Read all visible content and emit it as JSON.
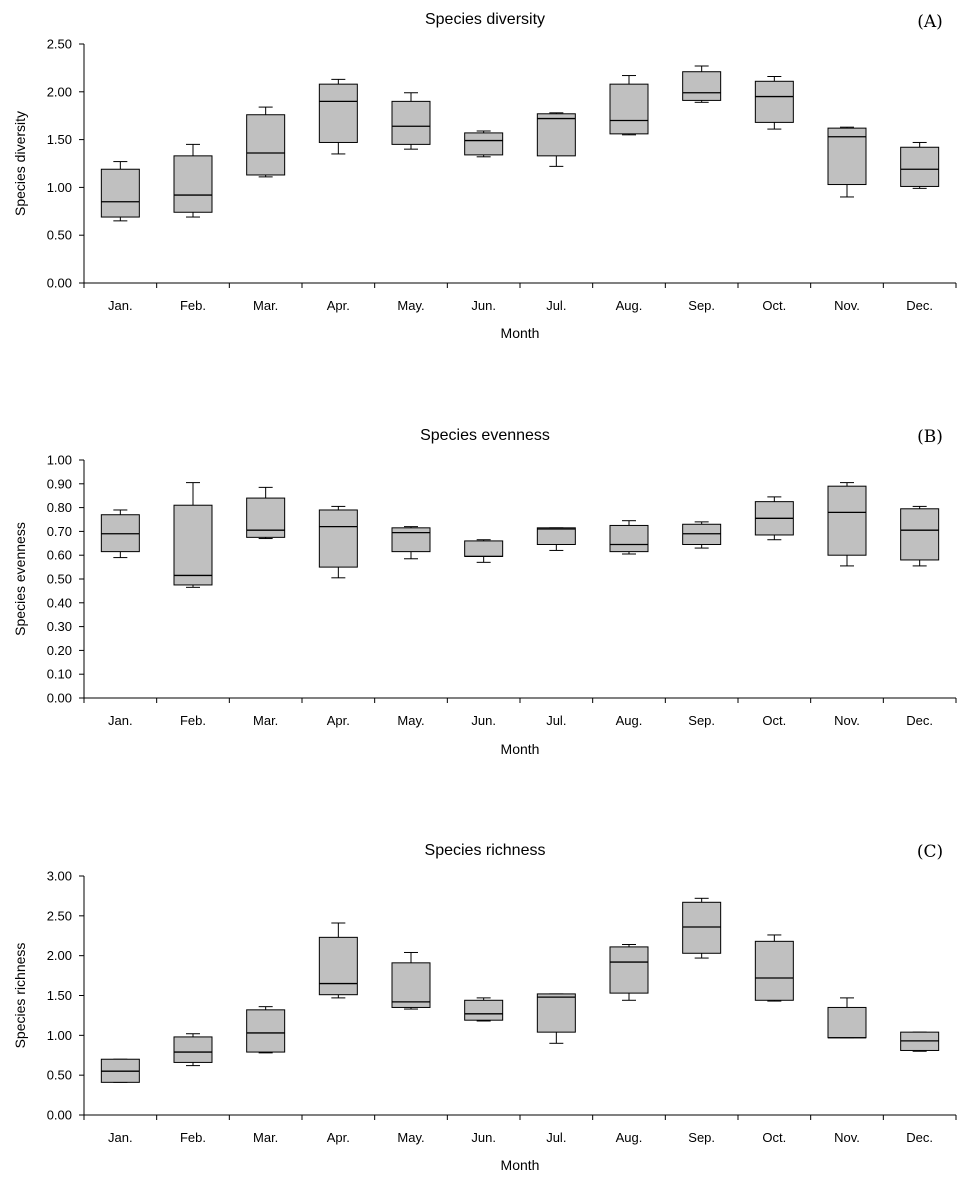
{
  "chart_data": [
    {
      "type": "box",
      "title": "Species diversity",
      "panel_label": "(A)",
      "xlabel": "Month",
      "ylabel": "Species diversity",
      "ylim": [
        0,
        2.5
      ],
      "yticks": [
        "0.00",
        "0.50",
        "1.00",
        "1.50",
        "2.00",
        "2.50"
      ],
      "categories": [
        "Jan.",
        "Feb.",
        "Mar.",
        "Apr.",
        "May.",
        "Jun.",
        "Jul.",
        "Aug.",
        "Sep.",
        "Oct.",
        "Nov.",
        "Dec."
      ],
      "boxes": [
        {
          "min": 0.65,
          "q1": 0.69,
          "median": 0.85,
          "q3": 1.19,
          "max": 1.27
        },
        {
          "min": 0.69,
          "q1": 0.74,
          "median": 0.92,
          "q3": 1.33,
          "max": 1.45
        },
        {
          "min": 1.11,
          "q1": 1.13,
          "median": 1.36,
          "q3": 1.76,
          "max": 1.84
        },
        {
          "min": 1.35,
          "q1": 1.47,
          "median": 1.9,
          "q3": 2.08,
          "max": 2.13
        },
        {
          "min": 1.4,
          "q1": 1.45,
          "median": 1.64,
          "q3": 1.9,
          "max": 1.99
        },
        {
          "min": 1.32,
          "q1": 1.34,
          "median": 1.49,
          "q3": 1.57,
          "max": 1.59
        },
        {
          "min": 1.22,
          "q1": 1.33,
          "median": 1.72,
          "q3": 1.77,
          "max": 1.78
        },
        {
          "min": 1.55,
          "q1": 1.56,
          "median": 1.7,
          "q3": 2.08,
          "max": 2.17
        },
        {
          "min": 1.89,
          "q1": 1.91,
          "median": 1.99,
          "q3": 2.21,
          "max": 2.27
        },
        {
          "min": 1.61,
          "q1": 1.68,
          "median": 1.95,
          "q3": 2.11,
          "max": 2.16
        },
        {
          "min": 0.9,
          "q1": 1.03,
          "median": 1.53,
          "q3": 1.62,
          "max": 1.63
        },
        {
          "min": 0.99,
          "q1": 1.01,
          "median": 1.19,
          "q3": 1.42,
          "max": 1.47
        }
      ]
    },
    {
      "type": "box",
      "title": "Species evenness",
      "panel_label": "(B)",
      "xlabel": "Month",
      "ylabel": "Species evenness",
      "ylim": [
        0,
        1
      ],
      "yticks": [
        "0.00",
        "0.10",
        "0.20",
        "0.30",
        "0.40",
        "0.50",
        "0.60",
        "0.70",
        "0.80",
        "0.90",
        "1.00"
      ],
      "categories": [
        "Jan.",
        "Feb.",
        "Mar.",
        "Apr.",
        "May.",
        "Jun.",
        "Jul.",
        "Aug.",
        "Sep.",
        "Oct.",
        "Nov.",
        "Dec."
      ],
      "boxes": [
        {
          "min": 0.59,
          "q1": 0.615,
          "median": 0.69,
          "q3": 0.77,
          "max": 0.79
        },
        {
          "min": 0.465,
          "q1": 0.475,
          "median": 0.515,
          "q3": 0.81,
          "max": 0.905
        },
        {
          "min": 0.67,
          "q1": 0.675,
          "median": 0.705,
          "q3": 0.84,
          "max": 0.885
        },
        {
          "min": 0.505,
          "q1": 0.55,
          "median": 0.72,
          "q3": 0.79,
          "max": 0.805
        },
        {
          "min": 0.585,
          "q1": 0.615,
          "median": 0.695,
          "q3": 0.715,
          "max": 0.72
        },
        {
          "min": 0.57,
          "q1": 0.595,
          "median": 0.595,
          "q3": 0.66,
          "max": 0.665
        },
        {
          "min": 0.62,
          "q1": 0.645,
          "median": 0.71,
          "q3": 0.715,
          "max": 0.715
        },
        {
          "min": 0.605,
          "q1": 0.615,
          "median": 0.645,
          "q3": 0.725,
          "max": 0.745
        },
        {
          "min": 0.63,
          "q1": 0.645,
          "median": 0.69,
          "q3": 0.73,
          "max": 0.74
        },
        {
          "min": 0.665,
          "q1": 0.685,
          "median": 0.755,
          "q3": 0.825,
          "max": 0.845
        },
        {
          "min": 0.555,
          "q1": 0.6,
          "median": 0.78,
          "q3": 0.89,
          "max": 0.905
        },
        {
          "min": 0.555,
          "q1": 0.58,
          "median": 0.705,
          "q3": 0.795,
          "max": 0.805
        }
      ]
    },
    {
      "type": "box",
      "title": "Species richness",
      "panel_label": "(C)",
      "xlabel": "Month",
      "ylabel": "Species richness",
      "ylim": [
        0,
        3
      ],
      "yticks": [
        "0.00",
        "0.50",
        "1.00",
        "1.50",
        "2.00",
        "2.50",
        "3.00"
      ],
      "categories": [
        "Jan.",
        "Feb.",
        "Mar.",
        "Apr.",
        "May.",
        "Jun.",
        "Jul.",
        "Aug.",
        "Sep.",
        "Oct.",
        "Nov.",
        "Dec."
      ],
      "boxes": [
        {
          "min": 0.41,
          "q1": 0.41,
          "median": 0.55,
          "q3": 0.7,
          "max": 0.7
        },
        {
          "min": 0.62,
          "q1": 0.66,
          "median": 0.79,
          "q3": 0.98,
          "max": 1.02
        },
        {
          "min": 0.78,
          "q1": 0.79,
          "median": 1.03,
          "q3": 1.32,
          "max": 1.36
        },
        {
          "min": 1.47,
          "q1": 1.51,
          "median": 1.65,
          "q3": 2.23,
          "max": 2.41
        },
        {
          "min": 1.33,
          "q1": 1.35,
          "median": 1.42,
          "q3": 1.91,
          "max": 2.04
        },
        {
          "min": 1.18,
          "q1": 1.19,
          "median": 1.27,
          "q3": 1.44,
          "max": 1.47
        },
        {
          "min": 0.9,
          "q1": 1.04,
          "median": 1.48,
          "q3": 1.52,
          "max": 1.52
        },
        {
          "min": 1.44,
          "q1": 1.53,
          "median": 1.92,
          "q3": 2.11,
          "max": 2.14
        },
        {
          "min": 1.97,
          "q1": 2.03,
          "median": 2.36,
          "q3": 2.67,
          "max": 2.72
        },
        {
          "min": 1.43,
          "q1": 1.44,
          "median": 1.72,
          "q3": 2.18,
          "max": 2.26
        },
        {
          "min": 0.97,
          "q1": 0.97,
          "median": 0.97,
          "q3": 1.35,
          "max": 1.47
        },
        {
          "min": 0.8,
          "q1": 0.81,
          "median": 0.93,
          "q3": 1.04,
          "max": 1.04
        }
      ]
    }
  ]
}
